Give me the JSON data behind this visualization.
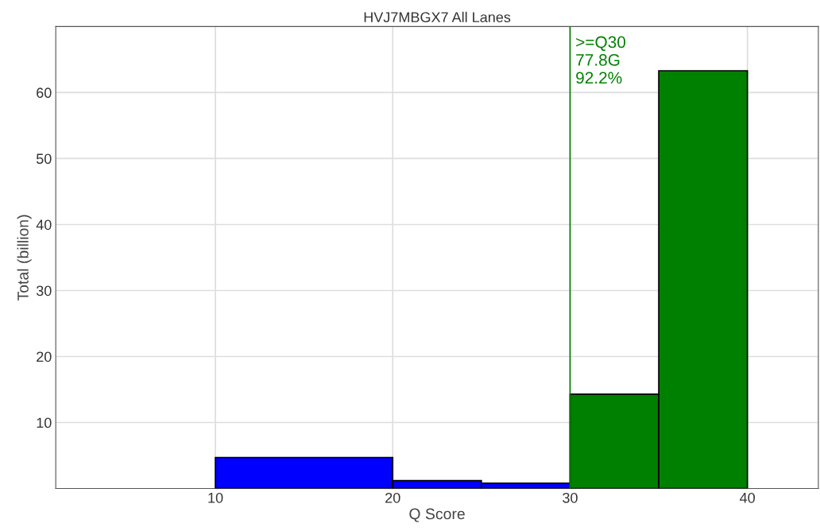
{
  "chart_data": {
    "type": "histogram",
    "title": "HVJ7MBGX7 All Lanes",
    "xlabel": "Q Score",
    "ylabel": "Total (billion)",
    "bins": [
      10,
      20,
      25,
      30,
      35,
      40
    ],
    "values": [
      4.7,
      1.2,
      0.8,
      14.3,
      63.3
    ],
    "colors": [
      "#0000ff",
      "#0000ff",
      "#0000ff",
      "#008000",
      "#008000"
    ],
    "xlim": [
      1,
      44
    ],
    "ylim": [
      0,
      70
    ],
    "xticks": [
      10,
      20,
      30,
      40
    ],
    "yticks": [
      10,
      20,
      30,
      40,
      50,
      60
    ],
    "ref_lines": [
      {
        "axis": "x",
        "value": 30,
        "label": ">=Q30\n77.8G\n92.2%",
        "color": "#008000"
      }
    ],
    "grid": true
  }
}
